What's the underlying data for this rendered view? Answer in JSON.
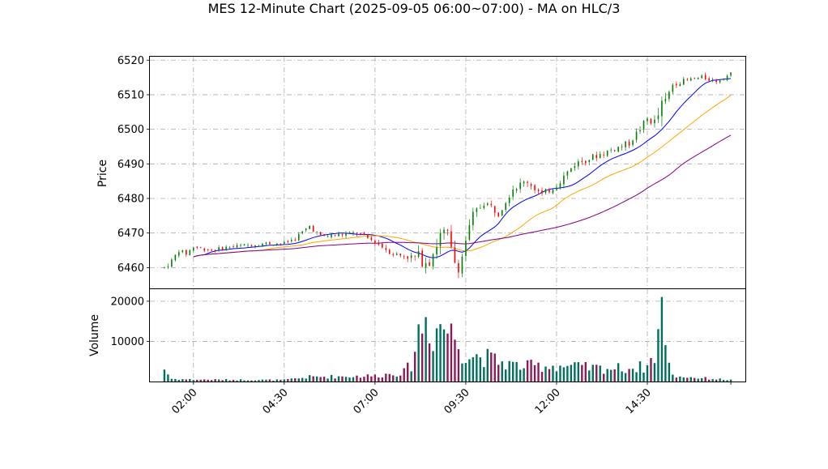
{
  "chart_data": {
    "type": "candlestick",
    "title": "MES 12-Minute Chart (2025-09-05 06:00~07:00) - MA on HLC/3",
    "price_panel": {
      "ylabel": "Price",
      "ylim": [
        6454,
        6521
      ],
      "yticks": [
        6460,
        6470,
        6480,
        6490,
        6500,
        6510,
        6520
      ],
      "grid": true
    },
    "volume_panel": {
      "ylabel": "Volume",
      "ylim": [
        0,
        23000
      ],
      "yticks": [
        10000,
        20000
      ],
      "grid": true
    },
    "xlabels": [
      "02:00",
      "04:30",
      "07:00",
      "09:30",
      "12:00",
      "14:30"
    ],
    "x_range": [
      "01:12",
      "16:48"
    ],
    "candle_interval_minutes": 12,
    "price_anchors": [
      [
        "01:12",
        6460
      ],
      [
        "01:24",
        6462
      ],
      [
        "01:36",
        6465
      ],
      [
        "01:48",
        6464
      ],
      [
        "02:00",
        6466
      ],
      [
        "02:30",
        6465
      ],
      [
        "03:00",
        6466
      ],
      [
        "03:30",
        6466.5
      ],
      [
        "04:00",
        6467
      ],
      [
        "04:30",
        6467
      ],
      [
        "04:48",
        6468.5
      ],
      [
        "05:12",
        6472
      ],
      [
        "05:30",
        6469
      ],
      [
        "06:00",
        6469.5
      ],
      [
        "06:30",
        6470
      ],
      [
        "07:00",
        6467.5
      ],
      [
        "07:12",
        6466
      ],
      [
        "07:30",
        6464
      ],
      [
        "08:00",
        6463
      ],
      [
        "08:30",
        6462.5
      ],
      [
        "08:40",
        6466
      ],
      [
        "08:50",
        6470
      ],
      [
        "09:00",
        6469
      ],
      [
        "09:10",
        6462
      ],
      [
        "09:20",
        6460
      ],
      [
        "09:30",
        6468
      ],
      [
        "09:42",
        6475
      ],
      [
        "10:00",
        6479
      ],
      [
        "10:24",
        6476
      ],
      [
        "10:48",
        6483
      ],
      [
        "11:12",
        6485
      ],
      [
        "11:36",
        6481
      ],
      [
        "12:00",
        6484
      ],
      [
        "12:30",
        6490
      ],
      [
        "13:00",
        6492
      ],
      [
        "13:30",
        6494
      ],
      [
        "14:00",
        6496
      ],
      [
        "14:30",
        6503
      ],
      [
        "14:42",
        6502
      ],
      [
        "15:00",
        6508
      ],
      [
        "15:12",
        6513
      ],
      [
        "15:30",
        6514
      ],
      [
        "16:00",
        6515
      ],
      [
        "16:24",
        6514
      ],
      [
        "16:48",
        6516
      ]
    ],
    "volume_anchors": [
      [
        "01:12",
        3300
      ],
      [
        "01:24",
        700
      ],
      [
        "02:00",
        500
      ],
      [
        "04:30",
        400
      ],
      [
        "05:12",
        1200
      ],
      [
        "07:00",
        1500
      ],
      [
        "07:48",
        2500
      ],
      [
        "08:00",
        4500
      ],
      [
        "08:12",
        13000
      ],
      [
        "08:24",
        16500
      ],
      [
        "08:36",
        12000
      ],
      [
        "08:48",
        15500
      ],
      [
        "09:00",
        13500
      ],
      [
        "09:12",
        12000
      ],
      [
        "09:24",
        8000
      ],
      [
        "09:36",
        7000
      ],
      [
        "10:00",
        6500
      ],
      [
        "10:30",
        5000
      ],
      [
        "11:00",
        4000
      ],
      [
        "12:00",
        4200
      ],
      [
        "13:00",
        3500
      ],
      [
        "14:00",
        3500
      ],
      [
        "14:30",
        4000
      ],
      [
        "14:42",
        7000
      ],
      [
        "14:48",
        13000
      ],
      [
        "14:54",
        21500
      ],
      [
        "15:00",
        7500
      ],
      [
        "15:06",
        6800
      ],
      [
        "15:12",
        1500
      ],
      [
        "16:00",
        900
      ],
      [
        "16:48",
        400
      ]
    ],
    "moving_averages": [
      {
        "color": "#0000ff",
        "period_bars": 6
      },
      {
        "color": "#ffa500",
        "period_bars": 14
      },
      {
        "color": "#800080",
        "period_bars": 30
      }
    ],
    "colors": {
      "up_candle": "#008000",
      "down_candle": "#ff0000",
      "vol_up": "#006f5e",
      "vol_down": "#8b1a5a",
      "grid": "#aaaaaa"
    }
  }
}
